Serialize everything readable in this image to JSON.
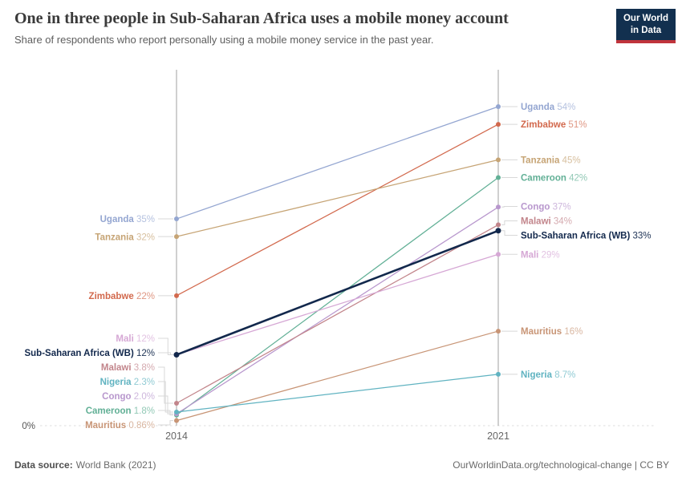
{
  "header": {
    "title": "One in three people in Sub-Saharan Africa uses a mobile money account",
    "subtitle": "Share of respondents who report personally using a mobile money service in the past year.",
    "logo": {
      "line1": "Our World",
      "line2": "in Data",
      "bg": "#12304f",
      "accent": "#c0343c"
    }
  },
  "chart_data": {
    "type": "line",
    "subtype": "slope",
    "x": [
      "2014",
      "2021"
    ],
    "unit": "%",
    "ylim": [
      0,
      60
    ],
    "grid": "baseline-only",
    "baseline": {
      "value": 0,
      "label": "0%"
    },
    "legend_position": "inline-labels",
    "series": [
      {
        "name": "Uganda",
        "values": [
          35,
          54
        ],
        "display": [
          "35%",
          "54%"
        ],
        "color": "#94a6d1"
      },
      {
        "name": "Zimbabwe",
        "values": [
          22,
          51
        ],
        "display": [
          "22%",
          "51%"
        ],
        "color": "#d2694d"
      },
      {
        "name": "Tanzania",
        "values": [
          32,
          45
        ],
        "display": [
          "32%",
          "45%"
        ],
        "color": "#c6a475"
      },
      {
        "name": "Cameroon",
        "values": [
          1.8,
          42
        ],
        "display": [
          "1.8%",
          "42%"
        ],
        "color": "#62b096"
      },
      {
        "name": "Congo",
        "values": [
          2.0,
          37
        ],
        "display": [
          "2.0%",
          "37%"
        ],
        "color": "#b897cd"
      },
      {
        "name": "Malawi",
        "values": [
          3.8,
          34
        ],
        "display": [
          "3.8%",
          "34%"
        ],
        "color": "#c2858b"
      },
      {
        "name": "Mali",
        "values": [
          12,
          29
        ],
        "display": [
          "12%",
          "29%"
        ],
        "color": "#d6a8d5"
      },
      {
        "name": "Sub-Saharan Africa (WB)",
        "values": [
          12,
          33
        ],
        "display": [
          "12%",
          "33%"
        ],
        "color": "#12284c",
        "emphasis": true
      },
      {
        "name": "Mauritius",
        "values": [
          0.86,
          16
        ],
        "display": [
          "0.86%",
          "16%"
        ],
        "color": "#c89576"
      },
      {
        "name": "Nigeria",
        "values": [
          2.3,
          8.7
        ],
        "display": [
          "2.3%",
          "8.7%"
        ],
        "color": "#60b3c1"
      }
    ]
  },
  "footer": {
    "source_label": "Data source:",
    "source_value": "World Bank (2021)",
    "note": "OurWorldinData.org/technological-change | CC BY"
  }
}
